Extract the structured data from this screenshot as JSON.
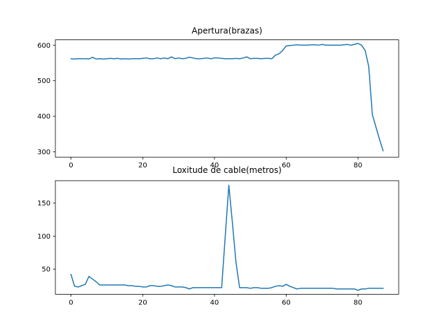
{
  "chart_data": [
    {
      "type": "line",
      "title": "Apertura(brazas)",
      "xlabel": "",
      "ylabel": "",
      "xlim": [
        -4.35,
        91.35
      ],
      "ylim": [
        285,
        615
      ],
      "xticks": [
        0,
        20,
        40,
        60,
        80
      ],
      "yticks": [
        300,
        400,
        500,
        600
      ],
      "color": "#1f77b4",
      "grid": false,
      "x": [
        0,
        1,
        2,
        3,
        4,
        5,
        6,
        7,
        8,
        9,
        10,
        11,
        12,
        13,
        14,
        15,
        16,
        17,
        18,
        19,
        20,
        21,
        22,
        23,
        24,
        25,
        26,
        27,
        28,
        29,
        30,
        31,
        32,
        33,
        34,
        35,
        36,
        37,
        38,
        39,
        40,
        41,
        42,
        43,
        44,
        45,
        46,
        47,
        48,
        49,
        50,
        51,
        52,
        53,
        54,
        55,
        56,
        57,
        58,
        59,
        60,
        61,
        62,
        63,
        64,
        65,
        66,
        67,
        68,
        69,
        70,
        71,
        72,
        73,
        74,
        75,
        76,
        77,
        78,
        79,
        80,
        81,
        82,
        83,
        84,
        85,
        86,
        87
      ],
      "values": [
        562,
        561,
        562,
        562,
        562,
        561,
        566,
        561,
        562,
        561,
        562,
        563,
        562,
        563,
        561,
        562,
        561,
        562,
        562,
        562,
        563,
        564,
        562,
        562,
        564,
        562,
        564,
        562,
        567,
        562,
        564,
        562,
        563,
        566,
        564,
        562,
        562,
        563,
        564,
        562,
        564,
        564,
        563,
        562,
        562,
        562,
        563,
        562,
        564,
        567,
        562,
        563,
        563,
        562,
        563,
        563,
        562,
        572,
        576,
        585,
        598,
        599,
        600,
        601,
        600,
        600,
        600,
        601,
        601,
        600,
        602,
        600,
        600,
        600,
        600,
        600,
        601,
        602,
        600,
        602,
        605,
        600,
        585,
        540,
        405,
        370,
        335,
        303
      ]
    },
    {
      "type": "line",
      "title": "Loxitude de cable(metros)",
      "xlabel": "",
      "ylabel": "",
      "xlim": [
        -4.35,
        91.35
      ],
      "ylim": [
        12,
        184
      ],
      "xticks": [
        0,
        20,
        40,
        60,
        80
      ],
      "yticks": [
        50,
        100,
        150
      ],
      "color": "#1f77b4",
      "grid": false,
      "x": [
        0,
        1,
        2,
        3,
        4,
        5,
        6,
        7,
        8,
        9,
        10,
        11,
        12,
        13,
        14,
        15,
        16,
        17,
        18,
        19,
        20,
        21,
        22,
        23,
        24,
        25,
        26,
        27,
        28,
        29,
        30,
        31,
        32,
        33,
        34,
        35,
        36,
        37,
        38,
        39,
        40,
        41,
        42,
        43,
        44,
        45,
        46,
        47,
        48,
        49,
        50,
        51,
        52,
        53,
        54,
        55,
        56,
        57,
        58,
        59,
        60,
        61,
        62,
        63,
        64,
        65,
        66,
        67,
        68,
        69,
        70,
        71,
        72,
        73,
        74,
        75,
        76,
        77,
        78,
        79,
        80,
        81,
        82,
        83,
        84,
        85,
        86,
        87
      ],
      "values": [
        42,
        24,
        23,
        25,
        27,
        39,
        35,
        31,
        26,
        26,
        26,
        26,
        26,
        26,
        26,
        26,
        25,
        25,
        24,
        24,
        23,
        23,
        25,
        25,
        24,
        24,
        25,
        26,
        25,
        23,
        23,
        23,
        22,
        20,
        22,
        22,
        22,
        22,
        22,
        22,
        22,
        22,
        22,
        100,
        177,
        120,
        60,
        22,
        22,
        22,
        21,
        22,
        22,
        21,
        21,
        21,
        22,
        24,
        25,
        24,
        27,
        24,
        22,
        20,
        21,
        21,
        21,
        21,
        21,
        21,
        21,
        21,
        21,
        21,
        20,
        20,
        20,
        20,
        20,
        20,
        18,
        20,
        20,
        21,
        21,
        21,
        21,
        21
      ]
    }
  ]
}
